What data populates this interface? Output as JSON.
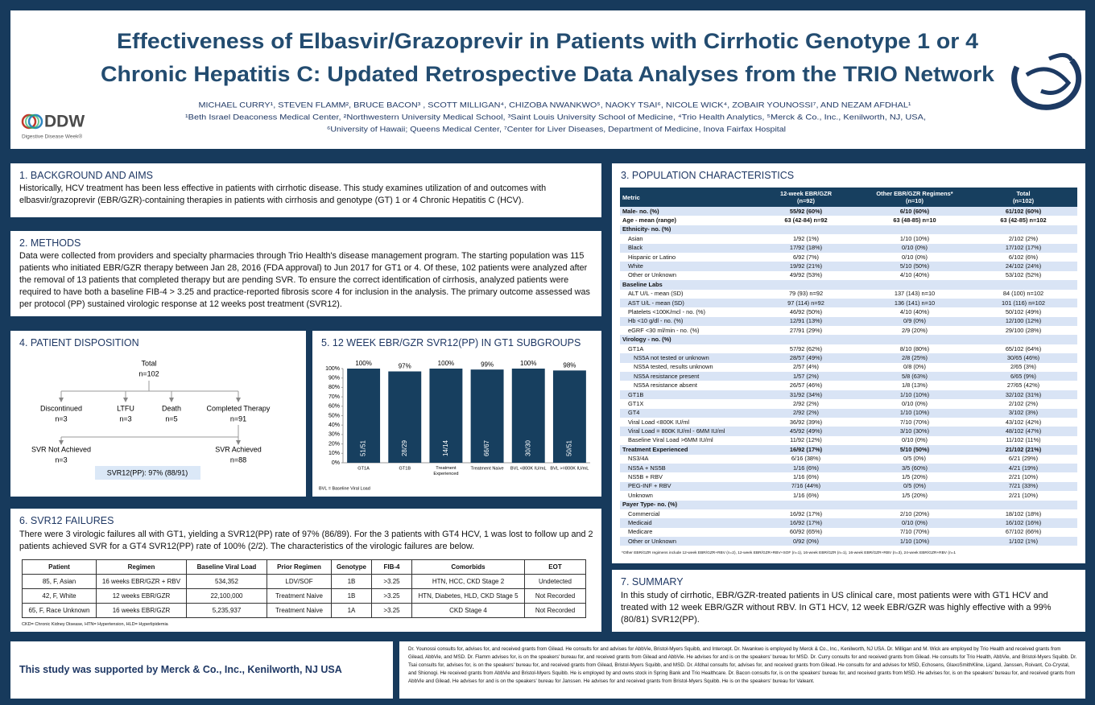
{
  "header": {
    "title_lines": [
      "Effectiveness of Elbasvir/Grazoprevir in Patients with Cirrhotic Genotype 1 or 4",
      "Chronic Hepatitis C: Updated Retrospective Data Analyses from the TRIO Network"
    ],
    "authors": "MICHAEL CURRY¹, STEVEN FLAMM², BRUCE BACON³ , SCOTT MILLIGAN⁴, CHIZOBA NWANKWO⁵, NAOKY TSAI⁶, NICOLE WICK⁴, ZOBAIR YOUNOSSI⁷, AND NEZAM AFDHAL¹",
    "affiliations": [
      "¹Beth Israel Deaconess Medical Center, ²Northwestern University Medical School, ³Saint Louis University School of Medicine, ⁴Trio Health Analytics, ⁵Merck & Co., Inc., Kenilworth, NJ, USA,",
      "⁶University of Hawaii; Queens Medical Center, ⁷Center for Liver Diseases, Department of Medicine, Inova Fairfax Hospital"
    ],
    "logo": "DDW",
    "logo_sub": "Digestive Disease Week®"
  },
  "background": {
    "heading": "1. BACKGROUND AND AIMS",
    "text": "Historically, HCV treatment has been less effective in patients with cirrhotic disease. This study examines utilization of and outcomes with elbasvir/grazoprevir (EBR/GZR)-containing therapies in patients with cirrhosis and genotype (GT) 1 or 4 Chronic Hepatitis C (HCV)."
  },
  "methods": {
    "heading": "2. METHODS",
    "text": "Data were collected from providers and specialty pharmacies through Trio Health's disease management program. The starting population was 115 patients who initiated EBR/GZR therapy between Jan 28, 2016 (FDA approval) to Jun 2017 for GT1 or 4. Of these, 102 patients were analyzed after the removal of 13 patients that completed therapy but are pending SVR. To ensure the correct identification of cirrhosis, analyzed patients were required to have both a baseline FIB-4 > 3.25 and practice-reported fibrosis score 4 for inclusion in the analysis. The primary outcome assessed was per protocol (PP) sustained virologic response at 12 weeks post treatment (SVR12)."
  },
  "disposition": {
    "heading": "4. PATIENT DISPOSITION",
    "nodes": [
      {
        "label": "Total",
        "n": "n=102"
      },
      {
        "label": "Discontinued",
        "n": "n=3"
      },
      {
        "label": "LTFU",
        "n": "n=3"
      },
      {
        "label": "Death",
        "n": "n=5"
      },
      {
        "label": "Completed Therapy",
        "n": "n=91"
      },
      {
        "label": "SVR Not Achieved",
        "n": "n=3"
      },
      {
        "label": "SVR Achieved",
        "n": "n=88"
      }
    ],
    "summary": "SVR12(PP): 97% (88/91)"
  },
  "chart_data": {
    "type": "bar",
    "title": "5. 12 WEEK EBR/GZR SVR12(PP) IN GT1 SUBGROUPS",
    "categories": [
      "GT1A",
      "GT1B",
      "Treatment Experienced",
      "Treatment Naive",
      "BVL <800K IU/mL",
      "BVL >=800K IU/mL"
    ],
    "values": [
      100,
      97,
      100,
      99,
      100,
      98
    ],
    "value_labels": [
      "100%",
      "97%",
      "100%",
      "99%",
      "100%",
      "98%"
    ],
    "fractions": [
      "51/51",
      "28/29",
      "14/14",
      "66/67",
      "30/30",
      "50/51"
    ],
    "color": "#173f5f",
    "ylim": [
      0,
      100
    ],
    "yticks": [
      {
        "value": 0,
        "label": "0%"
      },
      {
        "value": 10,
        "label": "10%"
      },
      {
        "value": 20,
        "label": "20%"
      },
      {
        "value": 30,
        "label": "30%"
      },
      {
        "value": 40,
        "label": "40%"
      },
      {
        "value": 50,
        "label": "50%"
      },
      {
        "value": 60,
        "label": "60%"
      },
      {
        "value": 70,
        "label": "70%"
      },
      {
        "value": 80,
        "label": "80%"
      },
      {
        "value": 90,
        "label": "90%"
      },
      {
        "value": 100,
        "label": "100%"
      }
    ],
    "note": "BVL = Baseline Viral Load"
  },
  "failures": {
    "heading": "6. SVR12 FAILURES",
    "text": "There were 3 virologic failures all with GT1, yielding a SVR12(PP) rate of 97% (86/89). For the 3 patients with GT4 HCV, 1 was lost to follow up and 2 patients achieved SVR for a GT4 SVR12(PP) rate of 100% (2/2). The characteristics of the virologic failures are below.",
    "columns": [
      "Patient",
      "Regimen",
      "Baseline Viral Load",
      "Prior Regimen",
      "Genotype",
      "FIB-4",
      "Comorbids",
      "EOT"
    ],
    "rows": [
      [
        "85, F, Asian",
        "16 weeks EBR/GZR + RBV",
        "534,352",
        "LDV/SOF",
        "1B",
        ">3.25",
        "HTN, HCC, CKD Stage 2",
        "Undetected"
      ],
      [
        "42, F, White",
        "12 weeks EBR/GZR",
        "22,100,000",
        "Treatment Naive",
        "1B",
        ">3.25",
        "HTN, Diabetes, HLD, CKD Stage 5",
        "Not Recorded"
      ],
      [
        "65, F, Race Unknown",
        "16 weeks EBR/GZR",
        "5,235,937",
        "Treatment Naive",
        "1A",
        ">3.25",
        "CKD Stage 4",
        "Not Recorded"
      ]
    ],
    "footnote": "CKD= Chronic Kidney Disease, HTN= Hypertension, HLD= Hyperlipidemia"
  },
  "population": {
    "heading": "3. POPULATION CHARACTERISTICS",
    "columns": [
      [
        "Metric"
      ],
      [
        "12-week EBR/GZR",
        "(n=92)"
      ],
      [
        "Other EBR/GZR Regimens*",
        "(n=10)"
      ],
      [
        "Total",
        "(n=102)"
      ]
    ],
    "rows": [
      {
        "cells": [
          "Male- no. (%)",
          "55/92 (60%)",
          "6/10 (60%)",
          "61/102 (60%)"
        ]
      },
      {
        "cells": [
          "Age - mean (range)",
          "63 (42-84) n=92",
          "63 (48-85) n=10",
          "63 (42-85) n=102"
        ]
      },
      {
        "cells": [
          "Ethnicity- no. (%)"
        ],
        "children": [
          {
            "cells": [
              "Asian",
              "1/92 (1%)",
              "1/10 (10%)",
              "2/102 (2%)"
            ]
          },
          {
            "cells": [
              "Black",
              "17/92 (18%)",
              "0/10 (0%)",
              "17/102 (17%)"
            ]
          },
          {
            "cells": [
              "Hispanic or Latino",
              "6/92 (7%)",
              "0/10 (0%)",
              "6/102 (6%)"
            ]
          },
          {
            "cells": [
              "White",
              "19/92 (21%)",
              "5/10 (50%)",
              "24/102 (24%)"
            ]
          },
          {
            "cells": [
              "Other or Unknown",
              "49/92 (53%)",
              "4/10 (40%)",
              "53/102 (52%)"
            ]
          }
        ]
      },
      {
        "cells": [
          "Baseline Labs"
        ],
        "children": [
          {
            "cells": [
              "ALT U/L - mean (SD)",
              "79 (93) n=92",
              "137 (143) n=10",
              "84 (100) n=102"
            ]
          },
          {
            "cells": [
              "AST U/L - mean (SD)",
              "97 (114) n=92",
              "136 (141) n=10",
              "101 (116) n=102"
            ]
          },
          {
            "cells": [
              "Platelets <100K/mcl - no. (%)",
              "46/92 (50%)",
              "4/10 (40%)",
              "50/102 (49%)"
            ]
          },
          {
            "cells": [
              "Hb <10 g/dl - no. (%)",
              "12/91 (13%)",
              "0/9 (0%)",
              "12/100 (12%)"
            ]
          },
          {
            "cells": [
              "eGRF <30 ml/min - no. (%)",
              "27/91 (29%)",
              "2/9 (20%)",
              "29/100 (28%)"
            ]
          }
        ]
      },
      {
        "cells": [
          "Virology - no. (%)"
        ],
        "children": [
          {
            "cells": [
              "GT1A",
              "57/92 (62%)",
              "8/10 (80%)",
              "65/102 (64%)"
            ],
            "children": [
              {
                "cells": [
                  "NS5A not tested or unknown",
                  "28/57 (49%)",
                  "2/8 (25%)",
                  "30/65 (46%)"
                ]
              },
              {
                "cells": [
                  "NS5A tested, results unknown",
                  "2/57 (4%)",
                  "0/8 (0%)",
                  "2/65 (3%)"
                ]
              },
              {
                "cells": [
                  "NS5A resistance present",
                  "1/57 (2%)",
                  "5/8 (63%)",
                  "6/65 (9%)"
                ]
              },
              {
                "cells": [
                  "NS5A resistance absent",
                  "26/57 (46%)",
                  "1/8 (13%)",
                  "27/65 (42%)"
                ]
              }
            ]
          },
          {
            "cells": [
              "GT1B",
              "31/92 (34%)",
              "1/10 (10%)",
              "32/102 (31%)"
            ]
          },
          {
            "cells": [
              "GT1X",
              "2/92 (2%)",
              "0/10 (0%)",
              "2/102 (2%)"
            ]
          },
          {
            "cells": [
              "GT4",
              "2/92 (2%)",
              "1/10 (10%)",
              "3/102 (3%)"
            ]
          },
          {
            "cells": [
              "Viral Load <800K IU/ml",
              "36/92 (39%)",
              "7/10 (70%)",
              "43/102 (42%)"
            ]
          },
          {
            "cells": [
              "Viral Load = 800K IU/ml - 6MM IU/ml",
              "45/92 (49%)",
              "3/10 (30%)",
              "48/102 (47%)"
            ]
          },
          {
            "cells": [
              "Baseline Viral Load >6MM IU/ml",
              "11/92 (12%)",
              "0/10 (0%)",
              "11/102 (11%)"
            ]
          }
        ]
      },
      {
        "cells": [
          "Treatment Experienced",
          "16/92 (17%)",
          "5/10 (50%)",
          "21/102 (21%)"
        ],
        "children": [
          {
            "cells": [
              "NS3/4A",
              "6/16 (38%)",
              "0/5 (0%)",
              "6/21 (29%)"
            ]
          },
          {
            "cells": [
              "NS5A + NS5B",
              "1/16 (6%)",
              "3/5 (60%)",
              "4/21 (19%)"
            ]
          },
          {
            "cells": [
              "NS5B + RBV",
              "1/16 (6%)",
              "1/5 (20%)",
              "2/21 (10%)"
            ]
          },
          {
            "cells": [
              "PEG-INF + RBV",
              "7/16 (44%)",
              "0/5 (0%)",
              "7/21 (33%)"
            ]
          },
          {
            "cells": [
              "Unknown",
              "1/16 (6%)",
              "1/5 (20%)",
              "2/21 (10%)"
            ]
          }
        ]
      },
      {
        "cells": [
          "Payer Type- no. (%)"
        ],
        "children": [
          {
            "cells": [
              "Commercial",
              "16/92 (17%)",
              "2/10 (20%)",
              "18/102 (18%)"
            ]
          },
          {
            "cells": [
              "Medicaid",
              "16/92 (17%)",
              "0/10 (0%)",
              "16/102 (16%)"
            ]
          },
          {
            "cells": [
              "Medicare",
              "60/92 (65%)",
              "7/10 (70%)",
              "67/102 (66%)"
            ]
          },
          {
            "cells": [
              "Other or Unknown",
              "0/92 (0%)",
              "1/10 (10%)",
              "1/102 (1%)"
            ]
          }
        ]
      }
    ],
    "footnote": "*Other EBR/GZR regimens include 12-week EBR/GZR+RBV (n=2), 12-week EBR/GZR+RBV+SOF (n=1), 16-week EBR/GZR (n=1), 16-week EBR/GZR+RBV (n=3), 24-week EBR/GZR+RBV (n=1"
  },
  "summary": {
    "heading": "7. SUMMARY",
    "text": "In this study of cirrhotic, EBR/GZR-treated patients in US clinical care, most patients were with GT1 HCV and treated with 12 week EBR/GZR without RBV. In GT1 HCV, 12 week EBR/GZR was highly effective with a 99% (80/81) SVR12(PP)."
  },
  "support": "This study was supported by Merck & Co., Inc., Kenilworth, NJ USA",
  "disclosures": "Dr. Younossi consults for, advises for, and received grants from Gilead. He consults for and advises for AbbVie, Bristol-Myers Squibb, and Intercept. Dr. Nwankwo is employed by Merck & Co., Inc., Kenilworth, NJ USA. Dr. Milligan and M. Wick are employed by Trio Health and received grants from Gilead, AbbVie, and MSD. Dr. Flamm advises for, is on the speakers' bureau for, and received grants from Gilead and AbbVie. He advises for and is on the speakers' bureau for MSD. Dr. Curry consults for and received grants from Gilead. He consults for Trio Health, AbbVie, and Bristol-Myers Squibb. Dr. Tsai consults for, advises for, is on the speakers' bureau for, and received grants from Gilead, Bristol-Myers Squibb, and MSD. Dr. Afdhal consults for, advises for, and received grants from Gilead. He consults for and advises for MSD, Echosens, GlaxoSmithKline, Ligand, Janssen, Roivant, Co-Crystal, and Shionogi. He received grants from AbbVie and Bristol-Myers Squibb. He is employed by and owns stock in Spring Bank and Trio Healthcare. Dr. Bacon consults for, is on the speakers' bureau for, and received grants from MSD. He advises for, is on the speakers' bureau for, and received grants from AbbVie and Gilead. He advises for and is on the speakers' bureau for Janssen. He advises for and received grants from Bristol-Myers Squibb. He is on the speakers' bureau for Valeant."
}
